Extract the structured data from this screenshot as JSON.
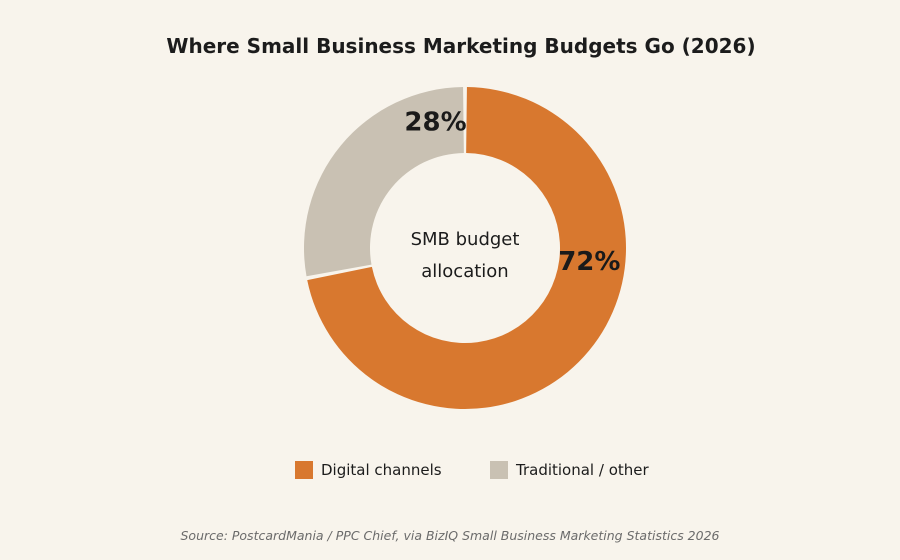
{
  "chart_data": {
    "type": "pie",
    "variant": "donut",
    "title": "Where Small Business Marketing Budgets Go (2026)",
    "center_label": [
      "SMB budget",
      "allocation"
    ],
    "slices": [
      {
        "name": "Digital channels",
        "value": 72,
        "label": "72%",
        "color": "#d8782f"
      },
      {
        "name": "Traditional / other",
        "value": 28,
        "label": "28%",
        "color": "#c9c1b3"
      }
    ],
    "legend_placement": "bottom",
    "source": "Source: PostcardMania / PPC Chief, via BizIQ Small Business Marketing Statistics 2026"
  }
}
